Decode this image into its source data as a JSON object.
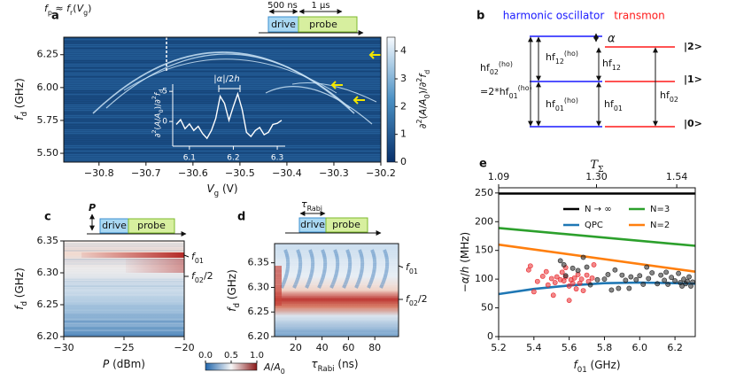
{
  "chart_data": [
    {
      "type": "heatmap",
      "panel_label": "a",
      "formula": [
        {
          "t": "f",
          "s": "it"
        },
        {
          "t": "p",
          "s": "sub"
        },
        {
          "t": " ≈ "
        },
        {
          "t": "f",
          "s": "it"
        },
        {
          "t": "r",
          "s": "sub"
        },
        {
          "t": "("
        },
        {
          "t": "V",
          "s": "it"
        },
        {
          "t": "g",
          "s": "sub"
        },
        {
          "t": ")"
        }
      ],
      "pulse": {
        "labels": [
          "500 ns",
          "1 μs"
        ],
        "blocks": [
          "drive",
          "probe"
        ]
      },
      "xlabel": [
        {
          "t": "V",
          "s": "it"
        },
        {
          "t": "g",
          "s": "sub"
        },
        {
          "t": " (V)"
        }
      ],
      "ylabel": [
        {
          "t": "f",
          "s": "it"
        },
        {
          "t": "d",
          "s": "sub"
        },
        {
          "t": " (GHz)"
        }
      ],
      "xlim": [
        -30.875,
        -30.2
      ],
      "xticks": [
        {
          "value": -30.8,
          "label": "−30.8"
        },
        {
          "value": -30.7,
          "label": "−30.7"
        },
        {
          "value": -30.6,
          "label": "−30.6"
        },
        {
          "value": -30.5,
          "label": "−30.5"
        },
        {
          "value": -30.4,
          "label": "−30.4"
        },
        {
          "value": -30.3,
          "label": "−30.3"
        },
        {
          "value": -30.2,
          "label": "−30.2"
        }
      ],
      "ylim": [
        5.433,
        6.383
      ],
      "yticks": [
        {
          "value": 5.5,
          "label": "5.50"
        },
        5.75,
        {
          "value": 6,
          "label": "6.00"
        },
        6.25
      ],
      "colorbar": {
        "label": [
          {
            "t": "∂"
          },
          {
            "t": "2",
            "s": "sup"
          },
          {
            "t": "("
          },
          {
            "t": "A",
            "s": "it"
          },
          {
            "t": "/"
          },
          {
            "t": "A",
            "s": "it"
          },
          {
            "t": "0",
            "s": "sub"
          },
          {
            "t": ")/∂"
          },
          {
            "t": "2",
            "s": "sup"
          },
          {
            "t": "f",
            "s": "it"
          },
          {
            "t": "d",
            "s": "sub"
          }
        ],
        "lim": [
          0,
          4.5
        ],
        "ticks": [
          0,
          1,
          2,
          3,
          4
        ]
      }
    },
    {
      "type": "line",
      "annotation": [
        {
          "t": "|"
        },
        {
          "t": "α",
          "s": "it"
        },
        {
          "t": "|/2"
        },
        {
          "t": "h",
          "s": "it"
        }
      ],
      "ylabel": [
        {
          "t": "∂"
        },
        {
          "t": "2",
          "s": "sup"
        },
        {
          "t": "("
        },
        {
          "t": "A",
          "s": "it"
        },
        {
          "t": "/"
        },
        {
          "t": "A",
          "s": "it"
        },
        {
          "t": "0",
          "s": "sub"
        },
        {
          "t": ")/∂"
        },
        {
          "t": "2",
          "s": "sup"
        },
        {
          "t": "f",
          "s": "it"
        },
        {
          "t": "d",
          "s": "sub"
        }
      ],
      "xlim": [
        6.062,
        6.318
      ],
      "xticks": [
        6.1,
        6.2,
        6.3
      ],
      "ylim": [
        -4.1,
        6.2
      ],
      "yticks": [
        0,
        5
      ],
      "x": [
        6.07,
        6.08,
        6.09,
        6.1,
        6.11,
        6.12,
        6.13,
        6.14,
        6.15,
        6.16,
        6.17,
        6.18,
        6.19,
        6.2,
        6.21,
        6.22,
        6.23,
        6.24,
        6.25,
        6.26,
        6.27,
        6.28,
        6.29,
        6.3,
        6.31
      ],
      "values": [
        -0.5,
        0.3,
        -1.2,
        -0.4,
        -1.5,
        -0.8,
        -2.0,
        -2.8,
        -1.5,
        0.5,
        4.2,
        3.0,
        0.2,
        2.5,
        4.6,
        2.0,
        -1.8,
        -2.5,
        -1.5,
        -1.0,
        -2.2,
        -1.8,
        -0.5,
        -0.3,
        0.2
      ],
      "color": "#ffffff"
    },
    {
      "type": "heatmap",
      "panel_label": "c",
      "pulse": {
        "symbol": [
          {
            "t": "P",
            "s": "it"
          }
        ],
        "blocks": [
          "drive",
          "probe"
        ]
      },
      "xlabel": [
        {
          "t": "P",
          "s": "it"
        },
        {
          "t": " (dBm)"
        }
      ],
      "ylabel": [
        {
          "t": "f",
          "s": "it"
        },
        {
          "t": "d",
          "s": "sub"
        },
        {
          "t": " (GHz)"
        }
      ],
      "xlim": [
        -30,
        -20
      ],
      "xticks": [
        {
          "value": -30,
          "label": "−30"
        },
        {
          "value": -25,
          "label": "−25"
        },
        {
          "value": -20,
          "label": "−20"
        }
      ],
      "ylim": [
        6.2,
        6.35
      ],
      "yticks": [
        {
          "value": 6.2,
          "label": "6.20"
        },
        6.25,
        {
          "value": 6.3,
          "label": "6.30"
        },
        6.35
      ],
      "annotations": [
        [
          {
            "t": "f",
            "s": "it"
          },
          {
            "t": "01",
            "s": "sub"
          }
        ],
        [
          {
            "t": "f",
            "s": "it"
          },
          {
            "t": "02",
            "s": "sub"
          },
          {
            "t": "/2"
          }
        ]
      ]
    },
    {
      "type": "heatmap",
      "panel_label": "d",
      "pulse": {
        "symbol": [
          {
            "t": "τ",
            "s": "it"
          },
          {
            "t": "Rabi",
            "s": "sub"
          }
        ],
        "blocks": [
          "drive",
          "probe"
        ]
      },
      "xlabel": [
        {
          "t": "τ",
          "s": "it"
        },
        {
          "t": "Rabi",
          "s": "sub"
        },
        {
          "t": " (ns)"
        }
      ],
      "ylabel": [
        {
          "t": "f",
          "s": "it"
        },
        {
          "t": "d",
          "s": "sub"
        },
        {
          "t": " (GHz)"
        }
      ],
      "xlim": [
        4,
        98
      ],
      "xticks": [
        20,
        40,
        60,
        80
      ],
      "ylim": [
        6.2,
        6.389
      ],
      "yticks": [
        {
          "value": 6.2,
          "label": "6.20"
        },
        6.25,
        {
          "value": 6.3,
          "label": "6.30"
        },
        6.35
      ],
      "annotations": [
        [
          {
            "t": "f",
            "s": "it"
          },
          {
            "t": "01",
            "s": "sub"
          }
        ],
        [
          {
            "t": "f",
            "s": "it"
          },
          {
            "t": "02",
            "s": "sub"
          },
          {
            "t": "/2"
          }
        ]
      ],
      "colorbar": {
        "label": [
          {
            "t": "A",
            "s": "it"
          },
          {
            "t": "/"
          },
          {
            "t": "A",
            "s": "it"
          },
          {
            "t": "0",
            "s": "sub"
          }
        ],
        "lim": [
          0,
          1
        ],
        "ticks": [
          {
            "value": 0,
            "label": "0.0"
          },
          {
            "value": 0.5,
            "label": "0.5"
          },
          {
            "value": 1,
            "label": "1.0"
          }
        ]
      }
    },
    {
      "type": "line",
      "panel_label": "e",
      "xlabel": [
        {
          "t": "f",
          "s": "it"
        },
        {
          "t": "01",
          "s": "sub"
        },
        {
          "t": " (GHz)"
        }
      ],
      "ylabel": [
        {
          "t": "−"
        },
        {
          "t": "α",
          "s": "it"
        },
        {
          "t": "/"
        },
        {
          "t": "h",
          "s": "it"
        },
        {
          "t": " (MHz)"
        }
      ],
      "top_axis": {
        "label": [
          {
            "t": "T",
            "s": "it"
          },
          {
            "t": "Σ",
            "s": "sub"
          }
        ],
        "ticks": [
          {
            "value": 5.2,
            "label": "1.09"
          },
          {
            "value": 5.755,
            "label": "1.30"
          },
          {
            "value": 6.21,
            "label": "1.54"
          }
        ]
      },
      "xlim": [
        5.2,
        6.315
      ],
      "xticks": [
        5.2,
        5.4,
        5.6,
        5.8,
        {
          "value": 6,
          "label": "6.0"
        },
        6.2
      ],
      "ylim": [
        0,
        259
      ],
      "yticks": [
        0,
        50,
        100,
        150,
        200,
        250
      ],
      "series": [
        {
          "name": "N → ∞",
          "color": "#000000",
          "x": [
            5.2,
            6.315
          ],
          "values": [
            249,
            249
          ]
        },
        {
          "name": "N=3",
          "color": "#2ca02c",
          "x": [
            5.2,
            6.315
          ],
          "values": [
            189,
            158
          ]
        },
        {
          "name": "QPC",
          "color": "#1f77b4",
          "x": [
            5.2,
            5.4,
            5.6,
            5.8,
            6.0,
            6.2,
            6.315
          ],
          "values": [
            74,
            83,
            89,
            93,
            94,
            93,
            92
          ]
        },
        {
          "name": "N=2",
          "color": "#ff7f0e",
          "x": [
            5.2,
            6.315
          ],
          "values": [
            160,
            113
          ]
        },
        {
          "type": "scatter",
          "color": "#e8262a",
          "x": [
            5.37,
            5.38,
            5.4,
            5.42,
            5.45,
            5.47,
            5.48,
            5.5,
            5.52,
            5.53,
            5.55,
            5.56,
            5.57,
            5.58,
            5.6,
            5.61,
            5.62,
            5.63,
            5.64,
            5.65,
            5.66,
            5.67,
            5.68,
            5.7,
            5.71,
            5.73,
            5.74,
            5.6,
            5.58,
            5.51
          ],
          "values": [
            116,
            123,
            78,
            96,
            105,
            113,
            90,
            101,
            94,
            104,
            99,
            112,
            97,
            104,
            88,
            99,
            93,
            102,
            83,
            108,
            93,
            100,
            80,
            107,
            96,
            102,
            125,
            63,
            120,
            72
          ]
        },
        {
          "type": "scatter",
          "color": "#222222",
          "x": [
            5.55,
            5.58,
            5.62,
            5.65,
            5.7,
            5.72,
            5.76,
            5.8,
            5.82,
            5.84,
            5.86,
            5.88,
            5.9,
            5.92,
            5.94,
            5.95,
            5.98,
            6.0,
            6.02,
            6.04,
            6.05,
            6.07,
            6.1,
            6.12,
            6.14,
            6.16,
            6.18,
            6.2,
            6.22,
            6.23,
            6.24,
            6.25,
            6.26,
            6.27,
            6.28,
            6.3,
            6.29,
            5.57,
            5.68,
            6.15
          ],
          "values": [
            132,
            106,
            119,
            115,
            121,
            90,
            99,
            100,
            108,
            81,
            116,
            84,
            107,
            98,
            84,
            104,
            99,
            106,
            91,
            121,
            101,
            111,
            92,
            107,
            98,
            91,
            103,
            97,
            110,
            94,
            88,
            100,
            92,
            96,
            104,
            95,
            88,
            125,
            138,
            112
          ]
        }
      ]
    }
  ],
  "diagram": {
    "panel_label": "b",
    "titles": [
      "harmonic oscillator",
      "transmon"
    ],
    "alpha": "α",
    "ho_02": [
      {
        "t": "hf"
      },
      {
        "t": "02",
        "s": "sub"
      },
      {
        "t": "(ho)",
        "s": "sup"
      }
    ],
    "ho_eq": [
      {
        "t": "=2*hf"
      },
      {
        "t": "01",
        "s": "sub"
      },
      {
        "t": "(ho)",
        "s": "sup"
      }
    ],
    "ho_12": [
      {
        "t": "hf"
      },
      {
        "t": "12",
        "s": "sub"
      },
      {
        "t": "(ho)",
        "s": "sup"
      }
    ],
    "ho_01": [
      {
        "t": "hf"
      },
      {
        "t": "01",
        "s": "sub"
      },
      {
        "t": "(ho)",
        "s": "sup"
      }
    ],
    "tr_12": [
      {
        "t": "hf"
      },
      {
        "t": "12",
        "s": "sub"
      }
    ],
    "tr_01": [
      {
        "t": "hf"
      },
      {
        "t": "01",
        "s": "sub"
      }
    ],
    "tr_02": [
      {
        "t": "hf"
      },
      {
        "t": "02",
        "s": "sub"
      }
    ],
    "levels": [
      "|2>",
      "|1>",
      "|0>"
    ]
  }
}
